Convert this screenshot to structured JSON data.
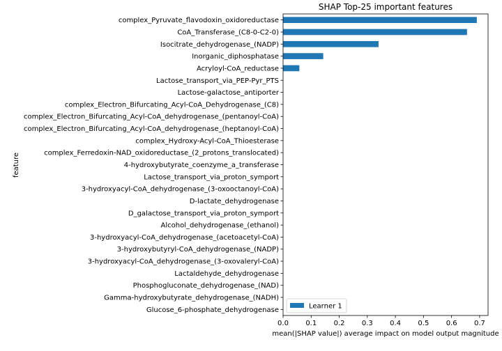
{
  "chart_data": {
    "type": "bar",
    "orientation": "horizontal",
    "title": "SHAP Top-25 important features",
    "xlabel": "mean(|SHAP value|) average impact on model output magnitude",
    "ylabel": "feature",
    "xlim": [
      0,
      0.73
    ],
    "xticks": [
      "0.0",
      "0.1",
      "0.2",
      "0.3",
      "0.4",
      "0.5",
      "0.6",
      "0.7"
    ],
    "xtick_values": [
      0,
      0.1,
      0.2,
      0.3,
      0.4,
      0.5,
      0.6,
      0.7
    ],
    "grid": false,
    "legend": {
      "position": "bottom-left",
      "entries": [
        "Learner 1"
      ]
    },
    "colors": {
      "bar": "#1f77b4"
    },
    "categories": [
      "complex_Pyruvate_flavodoxin_oxidoreductase",
      "CoA_Transferase_(C8-0-C2-0)",
      "Isocitrate_dehydrogenase_(NADP)",
      "Inorganic_diphosphatase",
      "Acryloyl-CoA_reductase",
      "Lactose_transport_via_PEP-Pyr_PTS",
      "Lactose-galactose_antiporter",
      "complex_Electron_Bifurcating_Acyl-CoA_Dehydrogenase_(C8)",
      "complex_Electron_Bifurcating_Acyl-CoA_dehydrogenase_(pentanoyl-CoA)",
      "complex_Electron_Bifurcating_Acyl-CoA_dehydrogenase_(heptanoyl-CoA)",
      "complex_Hydroxy-Acyl-CoA_Thioesterase",
      "complex_Ferredoxin-NAD_oxidoreductase_(2_protons_translocated)",
      "4-hydroxybutyrate_coenzyme_a_transferase",
      "Lactose_transport_via_proton_symport",
      "3-hydroxyacyl-CoA_dehydrogenase_(3-oxooctanoyl-CoA)",
      "D-lactate_dehydrogenase",
      "D_galactose_transport_via_proton_symport",
      "Alcohol_dehydrogenase_(ethanol)",
      "3-hydroxyacyl-CoA_dehydrogenase_(acetoacetyl-CoA)",
      "3-hydroxybutyryl-CoA_dehydrogenase_(NADP)",
      "3-hydroxyacyl-CoA_dehydrogenase_(3-oxovaleryl-CoA)",
      "Lactaldehyde_dehydrogenase",
      "Phosphogluconate_dehydrogenase_(NAD)",
      "Gamma-hydroxybutyrate_dehydrogenase_(NADH)",
      "Glucose_6-phosphate_dehydrogenase"
    ],
    "series": [
      {
        "name": "Learner 1",
        "values": [
          0.69,
          0.655,
          0.34,
          0.143,
          0.058,
          0,
          0,
          0,
          0,
          0,
          0,
          0,
          0,
          0,
          0,
          0,
          0,
          0,
          0,
          0,
          0,
          0,
          0,
          0,
          0
        ]
      }
    ]
  }
}
